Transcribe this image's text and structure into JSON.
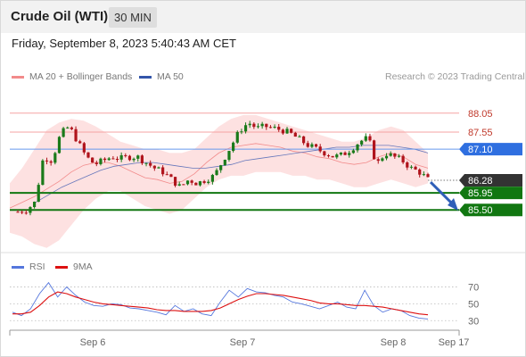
{
  "header": {
    "title": "Crude Oil (WTI)",
    "interval": "30 MIN",
    "datetime": "Friday, September 8, 2023 5:40:43 AM CET"
  },
  "legend": {
    "bb_label": "MA 20 + Bollinger Bands",
    "ma50_label": "MA 50",
    "credit": "Research © 2023 Trading Central",
    "colors": {
      "bb": "#f28b8b",
      "ma50": "#3355aa"
    }
  },
  "rsi_legend": {
    "rsi_label": "RSI",
    "ma9_label": "9MA",
    "colors": {
      "rsi": "#5577dd",
      "ma9": "#dd1111"
    }
  },
  "chart_data": [
    {
      "type": "candlestick",
      "ylim": [
        84.4,
        88.75
      ],
      "x_ticks": [
        "Sep 6",
        "Sep 7",
        "Sep 8",
        "Sep 17"
      ],
      "level_lines": [
        {
          "value": 88.05,
          "label": "88.05",
          "color": "#f5a3a3",
          "style": "solid",
          "tag": "none"
        },
        {
          "value": 87.55,
          "label": "87.55",
          "color": "#f5a3a3",
          "style": "solid",
          "tag": "none"
        },
        {
          "value": 87.1,
          "label": "87.10",
          "color": "#6699ee",
          "style": "solid",
          "tag": "blue"
        },
        {
          "value": 86.28,
          "label": "86.28",
          "color": "#777777",
          "style": "dotted",
          "tag": "dark"
        },
        {
          "value": 85.95,
          "label": "85.95",
          "color": "#117711",
          "style": "solid",
          "tag": "green"
        },
        {
          "value": 85.5,
          "label": "85.50",
          "color": "#117711",
          "style": "solid",
          "tag": "green"
        }
      ],
      "close_path": [
        85.45,
        85.5,
        85.7,
        86.9,
        86.8,
        87.5,
        87.7,
        87.3,
        86.9,
        86.7,
        86.8,
        86.9,
        86.85,
        86.9,
        86.9,
        86.75,
        86.6,
        86.5,
        86.3,
        86.1,
        86.3,
        86.2,
        86.3,
        86.4,
        86.8,
        87.2,
        87.6,
        87.8,
        87.65,
        87.7,
        87.65,
        87.6,
        87.5,
        87.35,
        87.2,
        87.1,
        87.0,
        86.9,
        86.95,
        87.1,
        87.3,
        87.4,
        86.7,
        87.0,
        86.9,
        86.8,
        86.6,
        86.5,
        86.3
      ],
      "ma20_band_upper": [
        86.2,
        86.6,
        87.1,
        87.6,
        87.8,
        87.9,
        87.85,
        87.7,
        87.5,
        87.3,
        87.2,
        87.1,
        87.1,
        87.0,
        87.0,
        87.1,
        87.4,
        87.7,
        87.9,
        88.0,
        88.0,
        87.9,
        87.8,
        87.7,
        87.6,
        87.5,
        87.4,
        87.3,
        87.3,
        87.4,
        87.6,
        87.7,
        87.6,
        87.3,
        87.0
      ],
      "ma20_band_lower": [
        84.9,
        84.8,
        84.6,
        84.5,
        84.7,
        85.1,
        85.5,
        85.8,
        86.0,
        86.0,
        85.8,
        85.6,
        85.5,
        85.4,
        85.5,
        85.8,
        86.1,
        86.3,
        86.4,
        86.4,
        86.5,
        86.5,
        86.5,
        86.4,
        86.4,
        86.3,
        86.3,
        86.2,
        86.1,
        86.1,
        86.2,
        86.3,
        86.2,
        86.1,
        86.2
      ],
      "ma50": [
        85.7,
        85.9,
        86.1,
        86.25,
        86.4,
        86.55,
        86.65,
        86.7,
        86.75,
        86.75,
        86.7,
        86.65,
        86.6,
        86.6,
        86.65,
        86.7,
        86.8,
        86.85,
        86.9,
        86.95,
        87.0,
        87.05,
        87.1,
        87.15,
        87.15,
        87.2,
        87.2,
        87.2,
        87.15,
        87.1,
        87.0
      ],
      "forecast_arrow": {
        "from": 86.28,
        "to": 85.95
      }
    },
    {
      "type": "line",
      "name": "RSI",
      "ylim": [
        25,
        80
      ],
      "y_ticks": [
        70,
        50,
        30
      ],
      "series": [
        {
          "name": "RSI",
          "color": "#5577dd",
          "values": [
            40,
            36,
            44,
            62,
            75,
            58,
            70,
            60,
            52,
            48,
            47,
            50,
            49,
            45,
            44,
            42,
            40,
            37,
            48,
            41,
            44,
            38,
            36,
            52,
            66,
            58,
            68,
            64,
            63,
            60,
            58,
            52,
            50,
            47,
            44,
            48,
            52,
            46,
            44,
            66,
            48,
            40,
            44,
            42,
            36,
            33,
            32
          ]
        },
        {
          "name": "9MA",
          "color": "#dd1111",
          "values": [
            38,
            38,
            40,
            48,
            58,
            64,
            62,
            58,
            55,
            52,
            50,
            49,
            48,
            47,
            46,
            45,
            43,
            42,
            42,
            41,
            41,
            41,
            42,
            45,
            50,
            55,
            59,
            62,
            62,
            61,
            60,
            58,
            56,
            54,
            51,
            50,
            50,
            49,
            48,
            48,
            47,
            46,
            44,
            42,
            40,
            38,
            37
          ]
        }
      ]
    }
  ]
}
